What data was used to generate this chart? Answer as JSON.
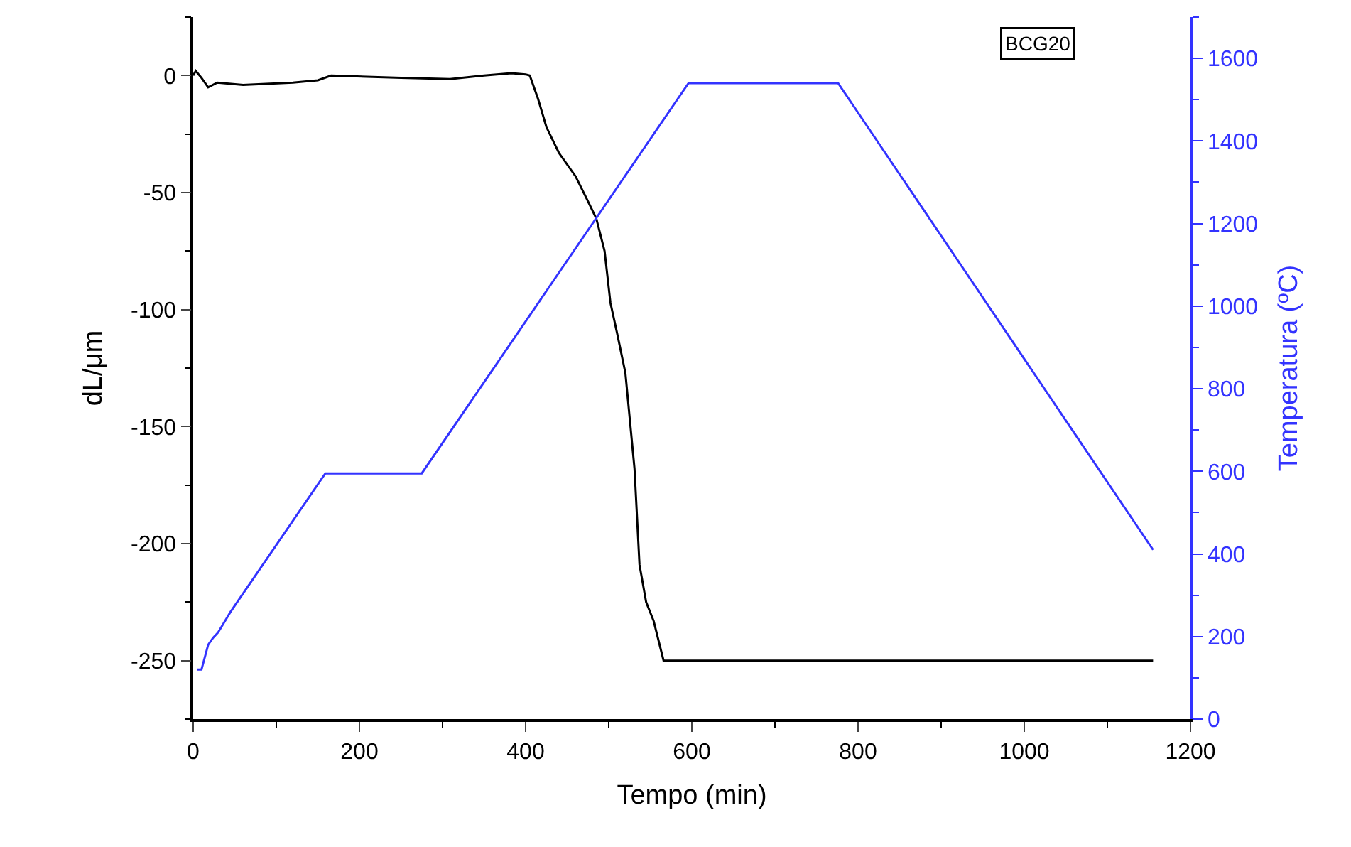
{
  "chart_data": {
    "type": "line",
    "xlabel": "Tempo (min)",
    "ylabel": "dL/μm",
    "y2label": "Temperatura (ºC)",
    "annotations": [
      "BCG20"
    ],
    "xlim": [
      0,
      1200
    ],
    "xticks": [
      0,
      200,
      400,
      600,
      800,
      1000,
      1200
    ],
    "ylim": [
      -275,
      25
    ],
    "yticks": [
      -250,
      -200,
      -150,
      -100,
      -50,
      0
    ],
    "y2lim": [
      0,
      1700
    ],
    "y2ticks": [
      0,
      200,
      400,
      600,
      800,
      1000,
      1200,
      1400,
      1600
    ],
    "marker": "none",
    "line_style": "solid",
    "series": [
      {
        "color": "#000000",
        "x": [
          0,
          3,
          10,
          18,
          29,
          60,
          120,
          150,
          166,
          250,
          309,
          350,
          383,
          400,
          405,
          415,
          425,
          440,
          460,
          474,
          485,
          495,
          502,
          510,
          520,
          531,
          537,
          545,
          554,
          566,
          1155
        ],
        "values": [
          0,
          2,
          -1,
          -5,
          -3,
          -4,
          -3,
          -2,
          0,
          -1,
          -1.5,
          0,
          1,
          0.5,
          0,
          -10,
          -22,
          -33,
          -43,
          -53,
          -61,
          -75,
          -97,
          -110,
          -127,
          -168,
          -209,
          -225,
          -233,
          -250,
          -250
        ]
      },
      {
        "color": "#3333ff",
        "axis": "y2",
        "x": [
          5,
          10,
          18,
          24,
          30,
          45,
          159,
          275,
          596,
          776,
          1155
        ],
        "values": [
          120,
          120,
          180,
          197,
          210,
          260,
          595,
          595,
          1540,
          1540,
          410
        ]
      }
    ]
  }
}
